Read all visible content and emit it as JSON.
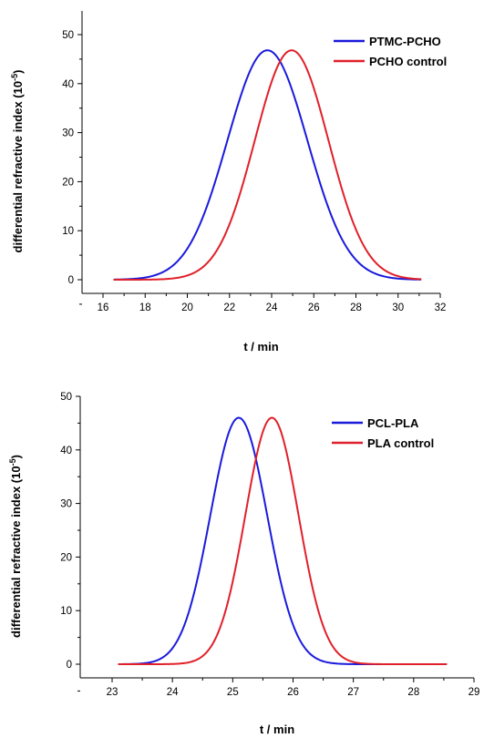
{
  "chart_data": [
    {
      "type": "line",
      "xlabel": "t / min",
      "ylabel": "differential refractive index (10",
      "ylabel_exponent": "-5",
      "ylabel_close": ")",
      "xlim": [
        15,
        33
      ],
      "ylim": [
        -5,
        55
      ],
      "xticks": [
        16,
        18,
        20,
        22,
        24,
        26,
        28,
        30,
        32
      ],
      "yticks": [
        0,
        10,
        20,
        30,
        40,
        50
      ],
      "legend_position": "top-right",
      "series": [
        {
          "name": "PTMC-PCHO",
          "color": "#1a1adc",
          "peak_x": 23.8,
          "peak_y": 46.8,
          "sigma": 1.9,
          "x_start": 16.5,
          "x_end": 31.1
        },
        {
          "name": "PCHO control",
          "color": "#e0202a",
          "peak_x": 24.95,
          "peak_y": 46.8,
          "sigma": 1.75,
          "x_start": 16.5,
          "x_end": 31.1
        }
      ]
    },
    {
      "type": "line",
      "xlabel": "t / min",
      "ylabel": "differential refractive index (10",
      "ylabel_exponent": "-5",
      "ylabel_close": ")",
      "xlim": [
        22.4,
        29
      ],
      "ylim": [
        -5,
        50
      ],
      "xticks": [
        23,
        24,
        25,
        26,
        27,
        28,
        29
      ],
      "yticks": [
        0,
        10,
        20,
        30,
        40,
        50
      ],
      "legend_position": "top-right",
      "series": [
        {
          "name": "PCL-PLA",
          "color": "#1a1adc",
          "peak_x": 25.1,
          "peak_y": 46.0,
          "sigma": 0.47,
          "x_start": 23.1,
          "x_end": 28.55
        },
        {
          "name": "PLA control",
          "color": "#e0202a",
          "peak_x": 25.65,
          "peak_y": 46.0,
          "sigma": 0.44,
          "x_start": 23.1,
          "x_end": 28.55
        }
      ]
    }
  ]
}
